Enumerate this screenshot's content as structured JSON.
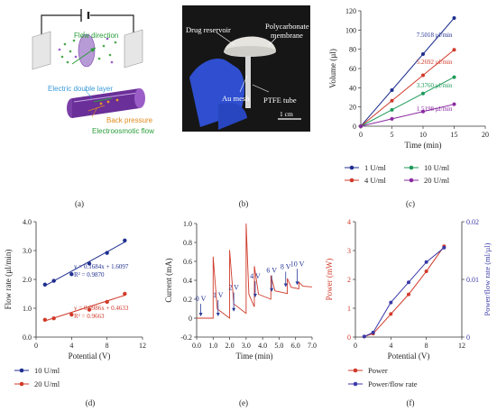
{
  "panel_labels": [
    "(a)",
    "(b)",
    "(c)",
    "(d)",
    "(e)",
    "(f)"
  ],
  "panel_a": {
    "labels": {
      "flow_direction": "Flow direction",
      "edl": "Electric double layer",
      "back_pressure": "Back pressure",
      "eo_flow": "Electroosmotic flow"
    },
    "colors": {
      "flow": "#2a9d3a",
      "edl": "#3a9ad9",
      "back": "#e08a1e",
      "eo": "#2a9d3a",
      "tube": "#7b3fa8"
    }
  },
  "panel_b": {
    "labels": {
      "drug_reservoir": "Drug reservoir",
      "polycarbonate": "Polycarbonate",
      "membrane": "membrane",
      "au_mesh": "Au mesh",
      "ptfe_tube": "PTFE tube",
      "scale": "1 cm"
    }
  },
  "chart_data": [
    {
      "type": "line",
      "panel": "(c)",
      "xlabel": "Time (min)",
      "ylabel": "Volume (µl)",
      "xlim": [
        0,
        20
      ],
      "ylim": [
        0,
        120
      ],
      "xticks": [
        "0",
        "5",
        "10",
        "15",
        "20"
      ],
      "yticks": [
        "0",
        "20",
        "40",
        "60",
        "80",
        "100",
        "120"
      ],
      "x": [
        0,
        5,
        10,
        15
      ],
      "series": [
        {
          "name": "1 U/ml",
          "color": "#1f2f8f",
          "values": [
            0,
            37.5,
            75.0,
            112.5
          ],
          "annotation": "7.5018 µl/min"
        },
        {
          "name": "4 U/ml",
          "color": "#d03a2a",
          "values": [
            0,
            26.5,
            53.0,
            79.5
          ],
          "annotation": "5.2692 µl/min"
        },
        {
          "name": "10 U/ml",
          "color": "#1e9a5a",
          "values": [
            0,
            17.0,
            34.0,
            51.0
          ],
          "annotation": "3.3760 µl/min"
        },
        {
          "name": "20 U/ml",
          "color": "#8a2aa0",
          "values": [
            0,
            7.6,
            15.2,
            22.8
          ],
          "annotation": "1.5198 µl/min"
        }
      ],
      "legend": "bottom"
    },
    {
      "type": "scatter",
      "panel": "(d)",
      "xlabel": "Potential (V)",
      "ylabel": "Flow rate (µl/min)",
      "xlim": [
        0,
        12
      ],
      "ylim": [
        0,
        4
      ],
      "xticks": [
        "0",
        "4",
        "8",
        "12"
      ],
      "yticks": [
        "0.0",
        "1.0",
        "2.0",
        "3.0",
        "4.0"
      ],
      "series": [
        {
          "name": "10 U/ml",
          "color": "#1f2f8f",
          "x": [
            1,
            2,
            4,
            6,
            8,
            10
          ],
          "values": [
            1.82,
            1.95,
            2.18,
            2.55,
            2.92,
            3.35
          ],
          "fit": [
            0.1684,
            1.6097
          ],
          "equation": "y = 0.1684x + 1.6097",
          "r2": "R² = 0.9870"
        },
        {
          "name": "20 U/ml",
          "color": "#d03a2a",
          "x": [
            1,
            2,
            4,
            6,
            8,
            10
          ],
          "values": [
            0.6,
            0.65,
            0.78,
            0.95,
            1.22,
            1.5
          ],
          "fit": [
            0.0986,
            0.4633
          ],
          "equation": "y = 0.0986x + 0.4633",
          "r2": "R² = 0.9663"
        }
      ],
      "legend": "bottom"
    },
    {
      "type": "line",
      "panel": "(e)",
      "xlabel": "Time (min)",
      "ylabel": "Current (mA)",
      "xlim": [
        0,
        7
      ],
      "ylim": [
        -0.2,
        1.0
      ],
      "xticks": [
        "0.0",
        "1.0",
        "2.0",
        "3.0",
        "4.0",
        "5.0",
        "6.0",
        "7.0"
      ],
      "yticks": [
        "-0.2",
        "0",
        "0.2",
        "0.4",
        "0.6",
        "0.8",
        "1.0"
      ],
      "color": "#d03a2a",
      "steps": [
        {
          "t": 0.0,
          "peak": 0.0,
          "base": 0.0,
          "label": "0 V"
        },
        {
          "t": 1.0,
          "peak": 0.65,
          "base": 0.0,
          "label": "1 V"
        },
        {
          "t": 2.0,
          "peak": 0.72,
          "base": 0.05,
          "label": "2 V"
        },
        {
          "t": 3.0,
          "peak": 1.0,
          "base": 0.12,
          "label": ""
        },
        {
          "t": 3.5,
          "peak": 0.55,
          "base": 0.2,
          "label": "4 V"
        },
        {
          "t": 4.5,
          "peak": 0.45,
          "base": 0.26,
          "label": "6 V"
        },
        {
          "t": 5.5,
          "peak": 0.42,
          "base": 0.31,
          "label": "8 V"
        },
        {
          "t": 6.2,
          "peak": 0.38,
          "base": 0.33,
          "label": "10 V"
        }
      ],
      "end_t": 7.0
    },
    {
      "type": "line",
      "panel": "(f)",
      "xlabel": "Potential (V)",
      "ylabel_left": "Power (mW)",
      "ylabel_right": "Power/flow rate (ml/µl)",
      "xlim": [
        0,
        12
      ],
      "ylim_left": [
        0,
        4
      ],
      "ylim_right": [
        0,
        0.02
      ],
      "xticks": [
        "0",
        "4",
        "8",
        "12"
      ],
      "yticks_left": [
        "0",
        "1",
        "2",
        "3",
        "4"
      ],
      "yticks_right": [
        "0",
        "0.01",
        "0.02"
      ],
      "x": [
        1,
        2,
        4,
        6,
        8,
        10
      ],
      "series": [
        {
          "name": "Power",
          "color": "#d03a2a",
          "axis": "left",
          "values": [
            0.02,
            0.12,
            0.8,
            1.48,
            2.28,
            3.15
          ]
        },
        {
          "name": "Power/flow rate",
          "color": "#3a3aa8",
          "axis": "right",
          "values": [
            0.0001,
            0.0008,
            0.006,
            0.0095,
            0.013,
            0.0155
          ]
        }
      ],
      "legend": "bottom"
    }
  ]
}
